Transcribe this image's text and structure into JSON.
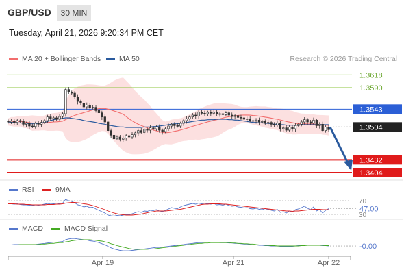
{
  "header": {
    "pair": "GBP/USD",
    "timeframe": "30 MIN",
    "datetime": "Tuesday, April 21, 2026 9:20:34 PM CET"
  },
  "legend": {
    "ma20": "MA 20 + Bollinger Bands",
    "ma50": "MA 50",
    "credit": "Research © 2026 Trading Central",
    "rsi": "RSI",
    "rsi_ma": "9MA",
    "macd": "MACD",
    "macd_signal": "MACD Signal"
  },
  "colors": {
    "ma20": "#f26d6d",
    "ma50": "#2a5a9e",
    "rsi": "#5577cc",
    "rsi_ma": "#dd2222",
    "macd": "#5577cc",
    "macd_signal": "#44aa22",
    "resistance": "#8cc43c",
    "pivot": "#2b5fd6",
    "support": "#e01b1b",
    "arrow": "#2a5a9e"
  },
  "chart_data": [
    {
      "type": "candlestick",
      "pair": "GBP/USD",
      "timeframe": "30 MIN",
      "ylim": [
        1.3395,
        1.3635
      ],
      "levels": [
        {
          "label": "1.3618",
          "value": 1.3618,
          "kind": "resistance"
        },
        {
          "label": "1.3590",
          "value": 1.359,
          "kind": "resistance"
        },
        {
          "label": "1.3543",
          "value": 1.3543,
          "kind": "pivot"
        },
        {
          "label": "1.3504",
          "value": 1.3504,
          "kind": "last"
        },
        {
          "label": "1.3432",
          "value": 1.3432,
          "kind": "support"
        },
        {
          "label": "1.3404",
          "value": 1.3404,
          "kind": "support"
        }
      ],
      "x_ticks": [
        "Apr 19",
        "Apr 21",
        "Apr 22"
      ],
      "close": [
        1.3515,
        1.3517,
        1.3514,
        1.3518,
        1.3516,
        1.351,
        1.3512,
        1.3506,
        1.3505,
        1.3512,
        1.351,
        1.3514,
        1.3518,
        1.3526,
        1.3522,
        1.3524,
        1.3521,
        1.3527,
        1.3533,
        1.3586,
        1.358,
        1.3578,
        1.357,
        1.356,
        1.3556,
        1.3548,
        1.3552,
        1.3546,
        1.3547,
        1.354,
        1.3535,
        1.3526,
        1.3515,
        1.3496,
        1.3486,
        1.3478,
        1.3482,
        1.3477,
        1.348,
        1.3485,
        1.3482,
        1.3487,
        1.3491,
        1.3496,
        1.3492,
        1.3499,
        1.3497,
        1.3502,
        1.35,
        1.3504,
        1.3497,
        1.3494,
        1.35,
        1.3506,
        1.351,
        1.3507,
        1.3506,
        1.3512,
        1.3518,
        1.3522,
        1.3526,
        1.353,
        1.3528,
        1.3537,
        1.3534,
        1.3533,
        1.3536,
        1.3534,
        1.3537,
        1.3532,
        1.3533,
        1.3531,
        1.3535,
        1.353,
        1.3527,
        1.3529,
        1.3525,
        1.3524,
        1.3521,
        1.3522,
        1.3518,
        1.3517,
        1.3519,
        1.3515,
        1.3516,
        1.3512,
        1.3514,
        1.351,
        1.3508,
        1.3513,
        1.35,
        1.3502,
        1.3497,
        1.3504,
        1.35,
        1.3507,
        1.351,
        1.3515,
        1.352,
        1.3515,
        1.3512,
        1.3519,
        1.3507,
        1.351,
        1.3496,
        1.3504,
        1.3498
      ],
      "ma50": [
        1.3515,
        1.3514,
        1.3514,
        1.3513,
        1.3513,
        1.3512,
        1.3512,
        1.3511,
        1.3511,
        1.3511,
        1.3512,
        1.3513,
        1.3514,
        1.3516,
        1.3518,
        1.352,
        1.3521,
        1.3522,
        1.3523,
        1.3524,
        1.3524,
        1.3523,
        1.3522,
        1.3521,
        1.352,
        1.3518,
        1.3517,
        1.3516,
        1.3515,
        1.3514,
        1.3512,
        1.3511,
        1.351,
        1.3508,
        1.3507,
        1.3506,
        1.3505,
        1.3504,
        1.3504,
        1.3503,
        1.3503,
        1.3503,
        1.3503,
        1.3503,
        1.3503,
        1.3504,
        1.3504,
        1.3504,
        1.3505,
        1.3505,
        1.3506,
        1.3507,
        1.3508,
        1.3509,
        1.351,
        1.3511,
        1.3511,
        1.3512,
        1.3513,
        1.3514,
        1.3515,
        1.3516,
        1.3517,
        1.3518,
        1.3519,
        1.3519,
        1.352,
        1.352,
        1.352,
        1.3521,
        1.3521,
        1.3521,
        1.3521,
        1.352,
        1.352,
        1.3519,
        1.3519,
        1.3518,
        1.3517,
        1.3516,
        1.3515,
        1.3514,
        1.3514,
        1.3513,
        1.3513,
        1.3512,
        1.3512,
        1.3511,
        1.351,
        1.351,
        1.3509,
        1.3509,
        1.3508,
        1.3508,
        1.3508,
        1.3508,
        1.3508,
        1.3509,
        1.3509,
        1.3509,
        1.3509,
        1.3509,
        1.3509,
        1.3509,
        1.3509,
        1.3509,
        1.3509
      ]
    },
    {
      "type": "line",
      "title": "RSI",
      "ylim": [
        20,
        80
      ],
      "ref_lines": [
        70,
        30
      ],
      "last_value": "47.00",
      "series": [
        {
          "name": "RSI",
          "values": [
            62,
            61,
            60,
            61,
            59,
            58,
            58,
            57,
            56,
            58,
            57,
            58,
            60,
            62,
            60,
            61,
            60,
            62,
            63,
            74,
            70,
            68,
            64,
            58,
            56,
            52,
            54,
            50,
            51,
            46,
            42,
            38,
            34,
            28,
            26,
            25,
            27,
            26,
            28,
            30,
            29,
            32,
            35,
            38,
            36,
            40,
            39,
            42,
            41,
            44,
            40,
            38,
            42,
            46,
            50,
            48,
            47,
            52,
            56,
            58,
            60,
            62,
            60,
            63,
            61,
            60,
            62,
            60,
            62,
            58,
            59,
            57,
            60,
            56,
            54,
            55,
            52,
            51,
            49,
            50,
            47,
            46,
            48,
            45,
            46,
            43,
            45,
            42,
            40,
            45,
            36,
            38,
            34,
            40,
            37,
            44,
            46,
            50,
            54,
            48,
            44,
            52,
            40,
            44,
            34,
            42,
            47
          ]
        },
        {
          "name": "9MA",
          "values": [
            61,
            61,
            61,
            60,
            60,
            60,
            59,
            59,
            58,
            58,
            58,
            58,
            58,
            59,
            59,
            59,
            60,
            60,
            61,
            63,
            64,
            65,
            65,
            64,
            63,
            61,
            60,
            58,
            56,
            53,
            50,
            47,
            44,
            40,
            37,
            34,
            32,
            30,
            29,
            28,
            28,
            28,
            29,
            30,
            31,
            33,
            35,
            37,
            38,
            40,
            40,
            40,
            40,
            41,
            42,
            43,
            44,
            45,
            47,
            49,
            51,
            53,
            55,
            57,
            59,
            60,
            60,
            61,
            61,
            61,
            61,
            60,
            60,
            59,
            58,
            57,
            56,
            55,
            54,
            53,
            52,
            51,
            50,
            49,
            48,
            47,
            46,
            45,
            44,
            43,
            42,
            41,
            40,
            40,
            39,
            40,
            40,
            41,
            42,
            43,
            44,
            45,
            45,
            45,
            44,
            44,
            44
          ]
        }
      ]
    },
    {
      "type": "line",
      "title": "MACD",
      "ylim": [
        -0.0025,
        0.0025
      ],
      "last_value": "-0.00",
      "series": [
        {
          "name": "MACD",
          "values": [
            0.0002,
            0.0002,
            0.0003,
            0.0003,
            0.0003,
            0.0002,
            0.0002,
            0.0002,
            0.0002,
            0.0003,
            0.0004,
            0.0005,
            0.0006,
            0.0007,
            0.0008,
            0.0009,
            0.0009,
            0.001,
            0.0011,
            0.0016,
            0.0018,
            0.0019,
            0.0019,
            0.0018,
            0.0017,
            0.0016,
            0.0015,
            0.0013,
            0.0012,
            0.001,
            0.0008,
            0.0005,
            0.0002,
            -0.0002,
            -0.0006,
            -0.0009,
            -0.0011,
            -0.0013,
            -0.0014,
            -0.0014,
            -0.0014,
            -0.0013,
            -0.0012,
            -0.0011,
            -0.001,
            -0.0009,
            -0.0008,
            -0.0007,
            -0.0006,
            -0.0005,
            -0.0005,
            -0.0004,
            -0.0003,
            -0.0002,
            -0.0001,
            0.0,
            0.0001,
            0.0002,
            0.0003,
            0.0004,
            0.0005,
            0.0006,
            0.0007,
            0.0008,
            0.0008,
            0.0009,
            0.0009,
            0.0009,
            0.0009,
            0.0009,
            0.0008,
            0.0008,
            0.0008,
            0.0007,
            0.0007,
            0.0006,
            0.0006,
            0.0005,
            0.0004,
            0.0004,
            0.0003,
            0.0002,
            0.0002,
            0.0001,
            0.0001,
            0.0,
            0.0,
            -0.0001,
            -0.0001,
            -0.0001,
            -0.0002,
            -0.0002,
            -0.0002,
            -0.0002,
            -0.0002,
            -0.0001,
            0.0,
            0.0001,
            0.0002,
            0.0002,
            0.0002,
            0.0002,
            0.0001,
            0.0001,
            0.0,
            0.0,
            -0.0001
          ]
        },
        {
          "name": "MACD Signal",
          "values": [
            0.0002,
            0.0002,
            0.0002,
            0.0002,
            0.0003,
            0.0003,
            0.0003,
            0.0003,
            0.0003,
            0.0003,
            0.0003,
            0.0004,
            0.0004,
            0.0005,
            0.0006,
            0.0006,
            0.0007,
            0.0008,
            0.0008,
            0.001,
            0.0011,
            0.0013,
            0.0014,
            0.0015,
            0.0016,
            0.0016,
            0.0016,
            0.0016,
            0.0015,
            0.0014,
            0.0013,
            0.0012,
            0.001,
            0.0008,
            0.0005,
            0.0003,
            0.0,
            -0.0002,
            -0.0004,
            -0.0006,
            -0.0008,
            -0.0009,
            -0.001,
            -0.001,
            -0.001,
            -0.001,
            -0.001,
            -0.0009,
            -0.0009,
            -0.0008,
            -0.0007,
            -0.0006,
            -0.0005,
            -0.0004,
            -0.0003,
            -0.0002,
            -0.0001,
            0.0,
            0.0001,
            0.0002,
            0.0003,
            0.0004,
            0.0005,
            0.0006,
            0.0006,
            0.0007,
            0.0007,
            0.0008,
            0.0008,
            0.0008,
            0.0008,
            0.0008,
            0.0008,
            0.0008,
            0.0007,
            0.0007,
            0.0006,
            0.0006,
            0.0005,
            0.0005,
            0.0004,
            0.0004,
            0.0003,
            0.0002,
            0.0002,
            0.0001,
            0.0001,
            0.0,
            0.0,
            -0.0001,
            -0.0001,
            -0.0001,
            -0.0001,
            -0.0001,
            -0.0001,
            -0.0001,
            -0.0001,
            0.0,
            0.0,
            0.0001,
            0.0001,
            0.0001,
            0.0001,
            0.0001,
            0.0001,
            0.0,
            0.0
          ]
        }
      ]
    }
  ]
}
